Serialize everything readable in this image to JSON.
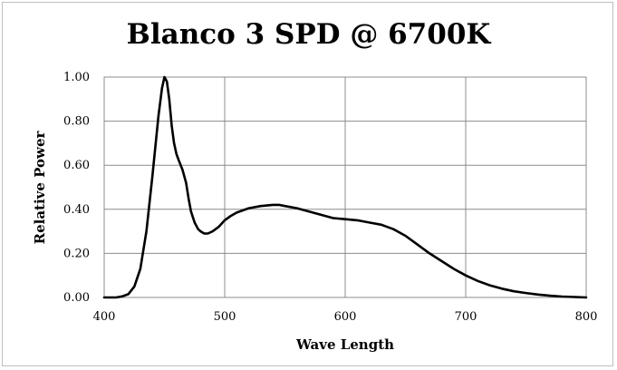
{
  "chart_data": {
    "type": "line",
    "title": "Blanco 3 SPD @ 6700K",
    "xlabel": "Wave Length",
    "ylabel": "Relative Power",
    "xlim": [
      400,
      800
    ],
    "ylim": [
      0,
      1
    ],
    "x_ticks": [
      "400",
      "500",
      "600",
      "700",
      "800"
    ],
    "y_ticks": [
      "0.00",
      "0.20",
      "0.40",
      "0.60",
      "0.80",
      "1.00"
    ],
    "grid": true,
    "legend": "none",
    "line_color": "#000000",
    "series": [
      {
        "x": [
          400,
          410,
          415,
          420,
          425,
          430,
          435,
          440,
          445,
          448,
          450,
          452,
          454,
          456,
          458,
          460,
          462,
          465,
          468,
          470,
          472,
          475,
          478,
          480,
          483,
          486,
          490,
          495,
          500,
          505,
          510,
          520,
          530,
          540,
          545,
          550,
          560,
          570,
          580,
          590,
          600,
          610,
          620,
          630,
          640,
          650,
          660,
          670,
          680,
          690,
          700,
          710,
          720,
          730,
          740,
          750,
          760,
          770,
          780,
          790,
          800
        ],
        "y": [
          0.0,
          0.0,
          0.005,
          0.015,
          0.05,
          0.13,
          0.3,
          0.55,
          0.82,
          0.95,
          1.0,
          0.98,
          0.9,
          0.78,
          0.7,
          0.65,
          0.62,
          0.58,
          0.52,
          0.45,
          0.39,
          0.34,
          0.31,
          0.3,
          0.29,
          0.29,
          0.3,
          0.32,
          0.35,
          0.37,
          0.385,
          0.405,
          0.415,
          0.42,
          0.42,
          0.415,
          0.405,
          0.39,
          0.375,
          0.36,
          0.355,
          0.35,
          0.34,
          0.33,
          0.31,
          0.28,
          0.24,
          0.2,
          0.165,
          0.13,
          0.1,
          0.075,
          0.055,
          0.04,
          0.028,
          0.02,
          0.013,
          0.008,
          0.004,
          0.002,
          0.0
        ]
      }
    ]
  }
}
